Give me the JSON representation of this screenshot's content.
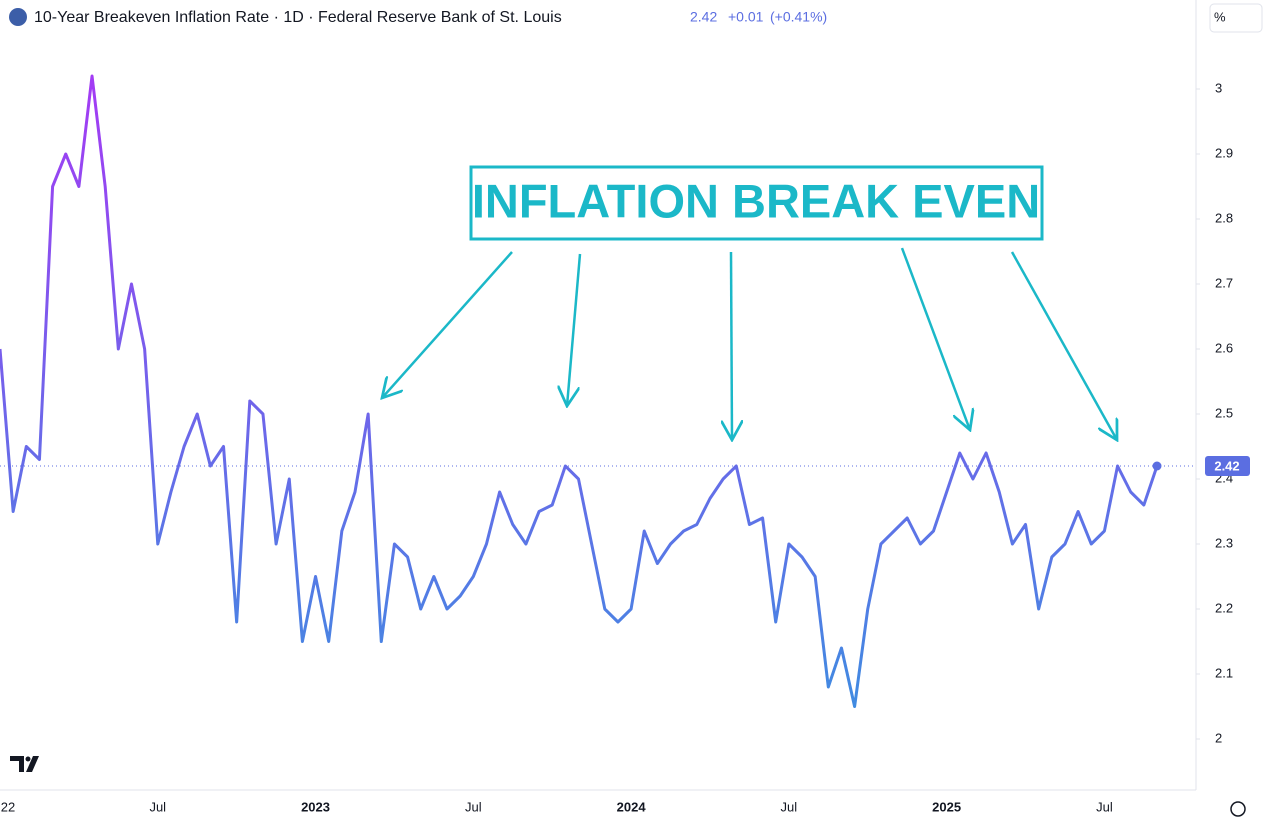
{
  "header": {
    "title": "10-Year Breakeven Inflation Rate · 1D · Federal Reserve Bank of St. Louis",
    "change": "+0.01",
    "change_pct": "(+0.41%)",
    "unit": "%"
  },
  "annotation": "INFLATION BREAK EVEN",
  "chart_data": {
    "type": "line",
    "title": "10-Year Breakeven Inflation Rate",
    "last_value": 2.42,
    "colors": [
      "#a23cf4",
      "#3b8fe0"
    ],
    "categories": [
      "22",
      null,
      null,
      null,
      null,
      null,
      null,
      null,
      null,
      null,
      null,
      null,
      "Jul",
      null,
      null,
      null,
      null,
      null,
      null,
      null,
      null,
      null,
      null,
      null,
      "2023",
      null,
      null,
      null,
      null,
      null,
      null,
      null,
      null,
      null,
      null,
      null,
      "Jul",
      null,
      null,
      null,
      null,
      null,
      null,
      null,
      null,
      null,
      null,
      null,
      "2024",
      null,
      null,
      null,
      null,
      null,
      null,
      null,
      null,
      null,
      null,
      null,
      "Jul",
      null,
      null,
      null,
      null,
      null,
      null,
      null,
      null,
      null,
      null,
      null,
      "2025",
      null,
      null,
      null,
      null,
      null,
      null,
      null,
      null,
      null,
      null,
      null,
      "Jul",
      null,
      null,
      null,
      null
    ],
    "values": [
      2.6,
      2.35,
      2.45,
      2.43,
      2.85,
      2.9,
      2.85,
      3.02,
      2.85,
      2.6,
      2.7,
      2.6,
      2.3,
      2.38,
      2.45,
      2.5,
      2.42,
      2.45,
      2.18,
      2.52,
      2.5,
      2.3,
      2.4,
      2.15,
      2.25,
      2.15,
      2.32,
      2.38,
      2.5,
      2.15,
      2.3,
      2.28,
      2.2,
      2.25,
      2.2,
      2.22,
      2.25,
      2.3,
      2.38,
      2.33,
      2.3,
      2.35,
      2.36,
      2.42,
      2.4,
      2.3,
      2.2,
      2.18,
      2.2,
      2.32,
      2.27,
      2.3,
      2.32,
      2.33,
      2.37,
      2.4,
      2.42,
      2.33,
      2.34,
      2.18,
      2.3,
      2.28,
      2.25,
      2.08,
      2.14,
      2.05,
      2.2,
      2.3,
      2.32,
      2.34,
      2.3,
      2.32,
      2.38,
      2.44,
      2.4,
      2.44,
      2.38,
      2.3,
      2.33,
      2.2,
      2.28,
      2.3,
      2.35,
      2.3,
      2.32,
      2.42,
      2.38,
      2.36,
      2.42
    ],
    "ylim": [
      1.92,
      3.14
    ],
    "yticks": [
      2,
      2.1,
      2.2,
      2.3,
      2.4,
      2.5,
      2.6,
      2.7,
      2.8,
      2.9,
      3
    ]
  }
}
